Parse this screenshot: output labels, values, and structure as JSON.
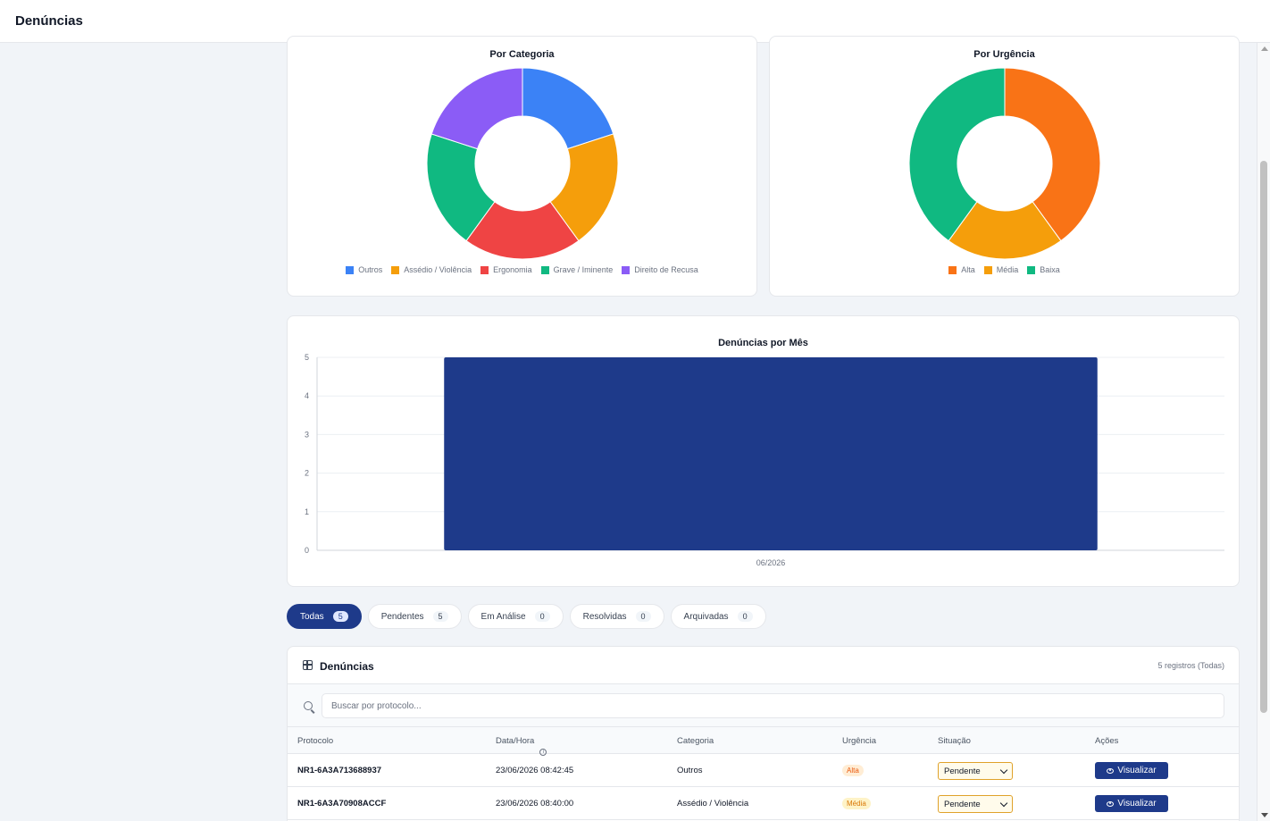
{
  "header": {
    "title": "Denúncias"
  },
  "category_chart": {
    "title": "Por Categoria",
    "chart_data": {
      "type": "pie",
      "title": "Por Categoria",
      "donut": true,
      "labels": [
        "Outros",
        "Assédio / Violência",
        "Ergonomia",
        "Grave / Iminente",
        "Direito de Recusa"
      ],
      "values": [
        1,
        1,
        1,
        1,
        1
      ],
      "colors": [
        "#3b82f6",
        "#f59e0b",
        "#ef4444",
        "#10b981",
        "#8b5cf6"
      ],
      "legend": "bottom"
    }
  },
  "urgency_chart": {
    "title": "Por Urgência",
    "chart_data": {
      "type": "pie",
      "title": "Por Urgência",
      "donut": true,
      "labels": [
        "Alta",
        "Média",
        "Baixa"
      ],
      "values": [
        2,
        1,
        2
      ],
      "colors": [
        "#f97316",
        "#f59e0b",
        "#10b981"
      ],
      "legend": "bottom"
    }
  },
  "month_chart": {
    "title": "Denúncias por Mês",
    "chart_data": {
      "type": "bar",
      "title": "Denúncias por Mês",
      "categories": [
        "06/2026"
      ],
      "values": [
        5
      ],
      "ylim": [
        0,
        5
      ],
      "yticks": [
        "0",
        "1",
        "2",
        "3",
        "4",
        "5"
      ],
      "color": "#1e3a8a",
      "grid": true
    }
  },
  "tabs": [
    {
      "label": "Todas",
      "count": "5"
    },
    {
      "label": "Pendentes",
      "count": "5"
    },
    {
      "label": "Em Análise",
      "count": "0"
    },
    {
      "label": "Resolvidas",
      "count": "0"
    },
    {
      "label": "Arquivadas",
      "count": "0"
    }
  ],
  "table": {
    "title": "Denúncias",
    "records": "5 registros (Todas)",
    "search_placeholder": "Buscar por protocolo...",
    "columns": [
      "Protocolo",
      "Data/Hora",
      "Categoria",
      "Urgência",
      "Situação",
      "Ações"
    ],
    "rows": [
      {
        "protocol": "NR1-6A3A713688937",
        "datetime": "23/06/2026 08:42:45",
        "category": "Outros",
        "urgency": "Alta",
        "urgency_bg": "#ffedd5",
        "urgency_fg": "#ea580c",
        "status": "Pendente",
        "action": "Visualizar"
      },
      {
        "protocol": "NR1-6A3A70908ACCF",
        "datetime": "23/06/2026 08:40:00",
        "category": "Assédio / Violência",
        "urgency": "Média",
        "urgency_bg": "#fef3c7",
        "urgency_fg": "#d97706",
        "status": "Pendente",
        "action": "Visualizar"
      }
    ]
  }
}
